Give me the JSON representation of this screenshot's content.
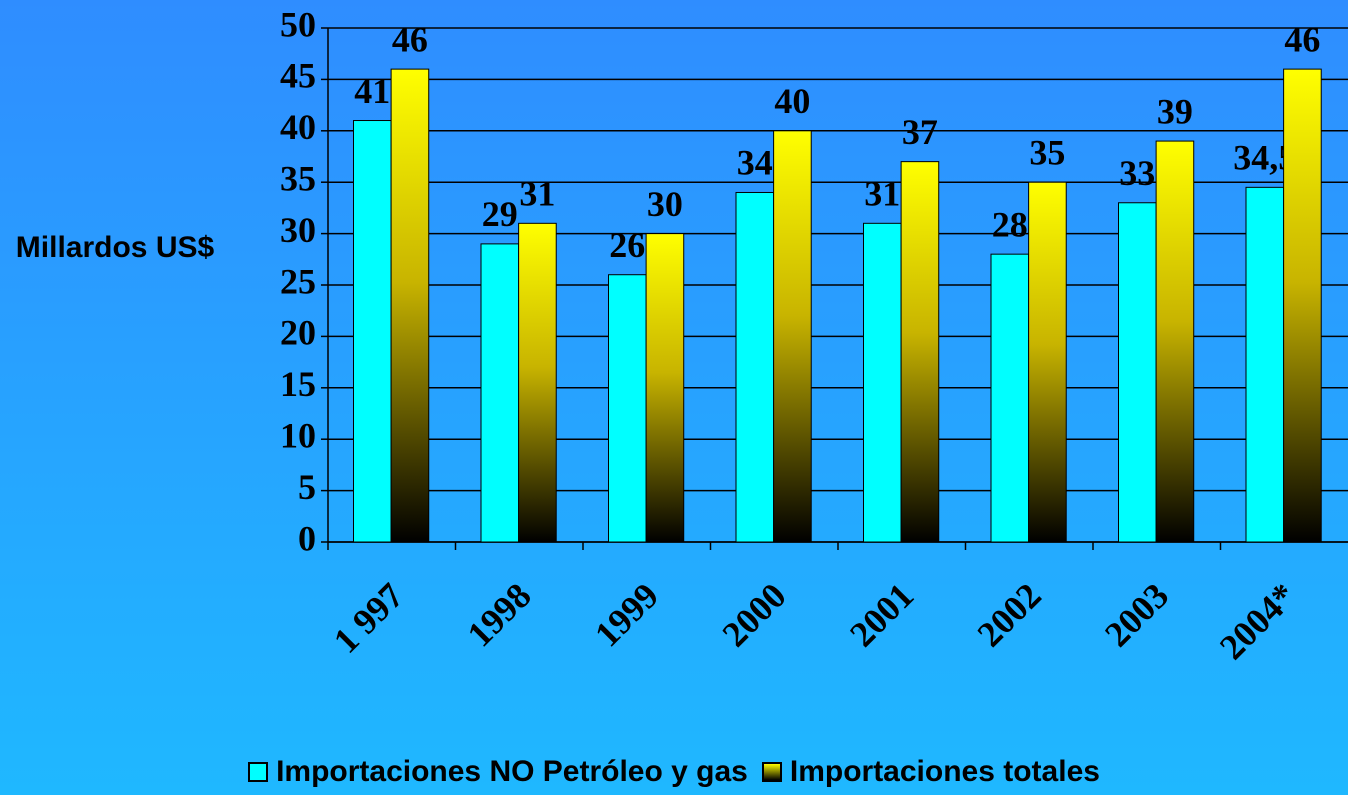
{
  "chart_data": {
    "type": "bar",
    "ylabel": "Millardos US$",
    "categories": [
      "1 997",
      "1998",
      "1999",
      "2000",
      "2001",
      "2002",
      "2003",
      "2004*"
    ],
    "series": [
      {
        "name": "Importaciones NO Petróleo y gas",
        "color": "#00ffff",
        "values": [
          41,
          29,
          26,
          34,
          31,
          28,
          33,
          34.5
        ],
        "value_labels": [
          "41",
          "29",
          "26",
          "34",
          "31",
          "28",
          "33",
          "34,5"
        ]
      },
      {
        "name": "Importaciones totales",
        "color": "#ffff00",
        "values": [
          46,
          31,
          30,
          40,
          37,
          35,
          39,
          46
        ]
      }
    ],
    "ylim": [
      0,
      50
    ],
    "yticks": [
      0,
      5,
      10,
      15,
      20,
      25,
      30,
      35,
      40,
      45,
      50
    ],
    "grid": true
  }
}
